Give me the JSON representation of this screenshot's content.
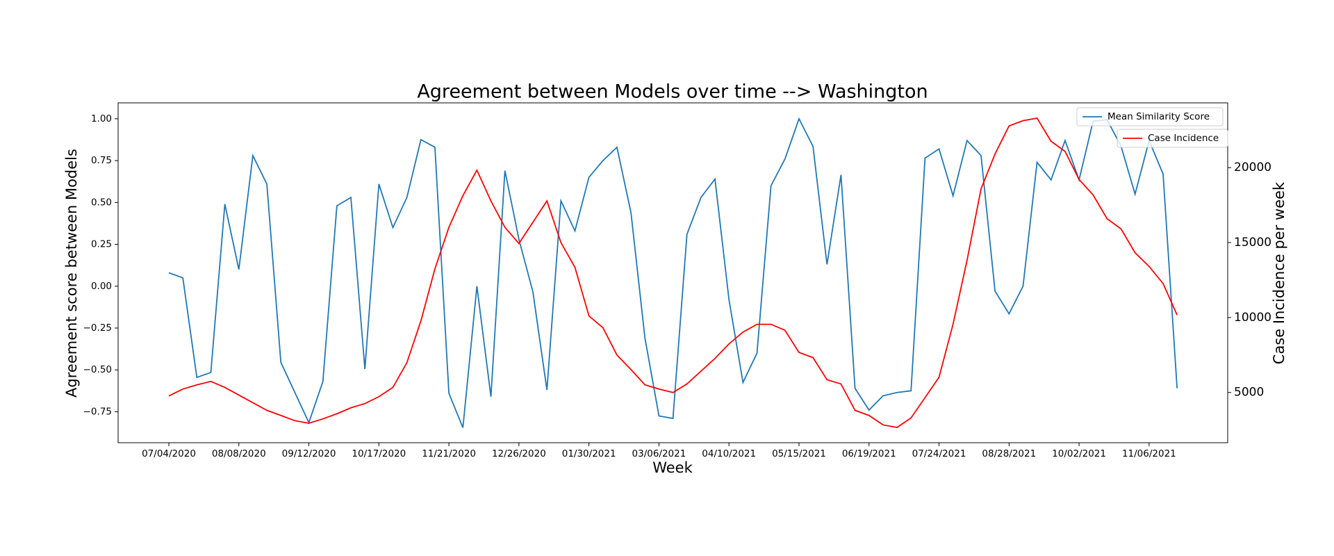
{
  "chart_data": {
    "type": "line",
    "title": "Agreement between Models over time --> Washington",
    "xlabel": "Week",
    "ylabel": "Agreement score between Models",
    "y2label": "Case Incidence per week",
    "categories": [
      "07/04/2020",
      null,
      null,
      null,
      null,
      "08/08/2020",
      null,
      null,
      null,
      null,
      "09/12/2020",
      null,
      null,
      null,
      null,
      "10/17/2020",
      null,
      null,
      null,
      null,
      "11/21/2020",
      null,
      null,
      null,
      null,
      "12/26/2020",
      null,
      null,
      null,
      null,
      "01/30/2021",
      null,
      null,
      null,
      null,
      "03/06/2021",
      null,
      null,
      null,
      null,
      "04/10/2021",
      null,
      null,
      null,
      null,
      "05/15/2021",
      null,
      null,
      null,
      null,
      "06/19/2021",
      null,
      null,
      null,
      null,
      "07/24/2021",
      null,
      null,
      null,
      null,
      "08/28/2021",
      null,
      null,
      null,
      null,
      "10/02/2021",
      null,
      null,
      null,
      null,
      "11/06/2021",
      null,
      null
    ],
    "series": [
      {
        "name": "Mean Similarity Score",
        "color": "#1f77b4",
        "values": [
          0.08,
          0.05,
          -0.545,
          -0.515,
          0.49,
          0.1,
          0.78,
          0.61,
          -0.455,
          -0.635,
          -0.815,
          -0.57,
          0.48,
          0.53,
          -0.495,
          0.61,
          0.35,
          0.53,
          0.875,
          0.83,
          -0.64,
          -0.845,
          0.0,
          -0.66,
          0.69,
          0.28,
          -0.035,
          -0.62,
          0.51,
          0.33,
          0.65,
          0.75,
          0.83,
          0.44,
          -0.31,
          -0.775,
          -0.79,
          0.31,
          0.53,
          0.64,
          -0.08,
          -0.575,
          -0.4,
          0.6,
          0.76,
          1.0,
          0.835,
          0.13,
          0.665,
          -0.61,
          -0.74,
          -0.655,
          -0.635,
          -0.625,
          0.765,
          0.82,
          0.54,
          0.87,
          0.78,
          -0.03,
          -0.165,
          0.0,
          0.74,
          0.635,
          0.87,
          0.635,
          0.985,
          0.995,
          0.835,
          0.55,
          0.87,
          0.67,
          -0.61
        ]
      },
      {
        "name": "Case Incidence",
        "color": "#ff0000",
        "axis": "y2",
        "values": [
          4770,
          5230,
          5510,
          5740,
          5340,
          4830,
          4320,
          3810,
          3470,
          3120,
          2950,
          3240,
          3580,
          3980,
          4260,
          4720,
          5340,
          6990,
          9770,
          13240,
          16020,
          18130,
          19830,
          17780,
          16020,
          14940,
          16360,
          17780,
          15000,
          13350,
          10110,
          9320,
          7500,
          6530,
          5510,
          5230,
          5000,
          5570,
          6420,
          7270,
          8240,
          9030,
          9550,
          9550,
          9150,
          7670,
          7330,
          5850,
          5570,
          3810,
          3470,
          2840,
          2670,
          3300,
          4660,
          6020,
          9550,
          13810,
          18580,
          20910,
          22780,
          23130,
          23300,
          21760,
          21080,
          19210,
          18180,
          16590,
          15910,
          14320,
          13410,
          12270,
          10170
        ]
      }
    ],
    "ylim": [
      -0.935,
      1.095
    ],
    "yticks": [
      {
        "value": -0.75,
        "label": "−0.75"
      },
      {
        "value": -0.5,
        "label": "−0.50"
      },
      {
        "value": -0.25,
        "label": "−0.25"
      },
      {
        "value": 0,
        "label": "0.00"
      },
      {
        "value": 0.25,
        "label": "0.25"
      },
      {
        "value": 0.5,
        "label": "0.50"
      },
      {
        "value": 0.75,
        "label": "0.75"
      },
      {
        "value": 1,
        "label": "1.00"
      }
    ],
    "y2lim": [
      1650,
      24320
    ],
    "y2ticks": [
      5000,
      10000,
      15000,
      20000
    ],
    "legend": "upper right",
    "grid": false
  }
}
